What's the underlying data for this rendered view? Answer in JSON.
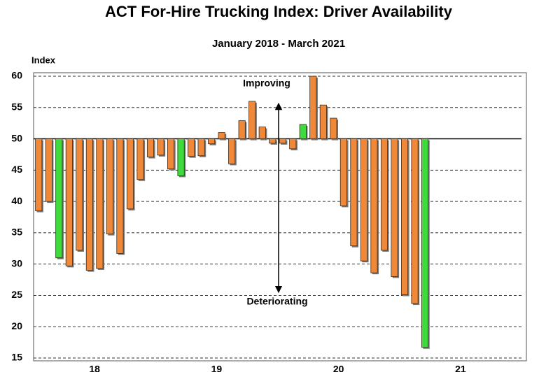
{
  "chart_data": {
    "type": "bar",
    "title": "ACT For-Hire Trucking Index: Driver Availability",
    "subtitle": "January 2018 - March 2021",
    "y_label": "Index",
    "annotations": [
      "Improving",
      "Deteriorating"
    ],
    "year_labels": [
      "18",
      "19",
      "20",
      "21"
    ],
    "categories": [
      null,
      null,
      null,
      null,
      null,
      null,
      null,
      null,
      null,
      null,
      null,
      null,
      null,
      null,
      null,
      null,
      null,
      null,
      null,
      null,
      null,
      null,
      null,
      null,
      null,
      null,
      null,
      null,
      null,
      null,
      null,
      null,
      null,
      null,
      null,
      null,
      null,
      null,
      null
    ],
    "values": [
      38.5,
      40,
      31,
      29.7,
      32.2,
      29,
      29.3,
      34.8,
      31.7,
      38.8,
      43.5,
      47.1,
      47.4,
      45.2,
      44.1,
      47.2,
      47.3,
      49.2,
      51,
      46,
      52.9,
      56,
      51.9,
      49.3,
      49.3,
      48.4,
      52.3,
      60,
      55.4,
      53.3,
      39.3,
      32.9,
      30.5,
      28.6,
      32.2,
      28,
      25.1,
      23.7,
      16.7
    ],
    "colors": [
      "#f0883a",
      "#f0883a",
      "#3ddb3d",
      "#f0883a",
      "#f0883a",
      "#f0883a",
      "#f0883a",
      "#f0883a",
      "#f0883a",
      "#f0883a",
      "#f0883a",
      "#f0883a",
      "#f0883a",
      "#f0883a",
      "#3ddb3d",
      "#f0883a",
      "#f0883a",
      "#f0883a",
      "#f0883a",
      "#f0883a",
      "#f0883a",
      "#f0883a",
      "#f0883a",
      "#f0883a",
      "#f0883a",
      "#f0883a",
      "#3ddb3d",
      "#f0883a",
      "#f0883a",
      "#f0883a",
      "#f0883a",
      "#f0883a",
      "#f0883a",
      "#f0883a",
      "#f0883a",
      "#f0883a",
      "#f0883a",
      "#f0883a",
      "#3ddb3d"
    ],
    "baseline": 50,
    "ylim": [
      15,
      60
    ],
    "yticks": [
      15,
      20,
      25,
      30,
      35,
      40,
      45,
      50,
      55,
      60
    ],
    "grid": true
  }
}
